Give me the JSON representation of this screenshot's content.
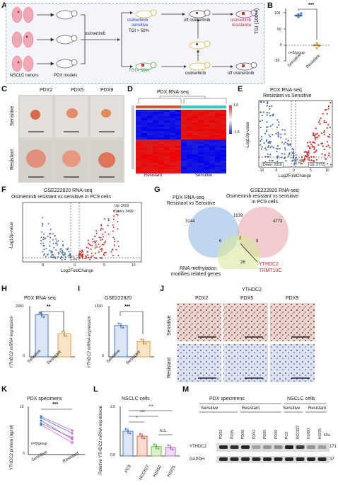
{
  "panel_letters": [
    "A",
    "B",
    "C",
    "D",
    "E",
    "F",
    "G",
    "H",
    "I",
    "J",
    "K",
    "L",
    "M"
  ],
  "panel_a": {
    "tumor_label": "NSCLC tumors",
    "pdx_label": "PDX models",
    "drug": "osimertinib",
    "sensitive_line1": "osimertinib",
    "sensitive_line2": "sensitive",
    "tgi_high": "TGI > 50%",
    "tgi_low": "TGI < 50%",
    "off_drug": "off osimertinib",
    "resistance_line1": "osimertinib",
    "resistance_line2": "resistance",
    "drug_again": "osimertinib",
    "off_drug_final": "off osimertinib"
  },
  "panel_b": {
    "ylabel": "TGI (100%)",
    "sig": "***",
    "n_note": "n=5/group",
    "categories": [
      "Sensitive",
      "Resistant"
    ],
    "yticks": [
      "100",
      "50",
      "0",
      "-50"
    ],
    "colors": {
      "sensitive": "#4a7fd4",
      "resistant": "#e8a23a"
    }
  },
  "panel_c": {
    "columns": [
      "PDX2",
      "PDX5",
      "PDX9"
    ],
    "rows": [
      "Sensitive",
      "Resistant"
    ]
  },
  "panel_d": {
    "title": "PDX RNA-seq",
    "groups": [
      "Resistant",
      "Sensitive"
    ],
    "scale": [
      "1.5",
      "1",
      "0.5",
      "0",
      "-0.5",
      "-1",
      "-1.5"
    ]
  },
  "panel_e": {
    "title_line1": "PDX RNA-seq",
    "title_line2": "Resistant vs Sensitive",
    "ylabel": "-Log10p-value",
    "xlabel": "Log2FoldChange",
    "xticks": [
      "-10",
      "-5",
      "0",
      "5",
      "10"
    ],
    "yticks": [
      "0",
      "5",
      "10",
      "15",
      "20"
    ],
    "down": "Down: 2019",
    "up": "Up: 2772"
  },
  "panel_f": {
    "title_line1": "GSE222820 RNA-seq",
    "title_line2": "Osimertinib resistant vs sensitive in PC9 cells",
    "ylabel": "-Log10p-value",
    "xlabel": "Log2FoldChange",
    "xticks": [
      "-5",
      "0",
      "5",
      "10"
    ],
    "yticks": [
      "0",
      "100",
      "200",
      "300"
    ],
    "up": "Up: 2623",
    "down": "Down: 3499"
  },
  "panel_g": {
    "set1_line1": "PDX RNA-seq",
    "set1_line2": "Resistant vs Sensitive",
    "set2_line1": "GSE222820 RNA-seq",
    "set2_line2": "Osimertinib resistant vs sensitive",
    "set2_line3": "in PC9 cells",
    "set3_line1": "RNA methylation",
    "set3_line2": "modifies related genes",
    "n_a": "3144",
    "n_ab": "1639",
    "n_b": "4773",
    "n_ac": "6",
    "n_abc": "2",
    "n_bc": "8",
    "n_c": "26",
    "gene1": "YTHDC2",
    "gene2": "TRMT10C"
  },
  "panel_h": {
    "title": "PDX RNA-seq",
    "ylabel": "YTHDC2 mRNA expression",
    "yticks": [
      "0",
      "500",
      "1000",
      "1500",
      "2000"
    ],
    "categories": [
      "Sensitive",
      "Resistant"
    ],
    "values": [
      1650,
      900
    ],
    "sig": "**"
  },
  "panel_i": {
    "title": "GSE222820",
    "ylabel": "YTHDC2 mRNA expression",
    "yticks": [
      "0",
      "500",
      "1000",
      "1500"
    ],
    "categories": [
      "Sensitive",
      "Resistant"
    ],
    "values": [
      920,
      450
    ],
    "sig": "***"
  },
  "panel_j": {
    "title": "YTHDC2",
    "columns": [
      "PDX2",
      "PDX5",
      "PDX9"
    ],
    "rows": [
      "Sensitive",
      "Resistant"
    ]
  },
  "panel_k": {
    "title": "PDX specimens",
    "ylabel": "YTHDC2 protein (ng/ml)",
    "yticks": [
      "0",
      "2",
      "4",
      "6",
      "8",
      "10"
    ],
    "categories": [
      "Sensitive",
      "Resistant"
    ],
    "sig": "***",
    "n_note": "n=5/group"
  },
  "panel_l": {
    "title": "NSCLC cells",
    "ylabel": "Relative YTHDC2 mRNA expression",
    "yticks": [
      "0.0",
      "0.5",
      "1.0",
      "1.5",
      "2.0"
    ],
    "categories": [
      "PC9",
      "HCC827",
      "H1650",
      "H1975"
    ],
    "values": [
      1.0,
      0.8,
      0.38,
      0.35
    ],
    "sig1": "*",
    "sig2": "***",
    "sig3": "***",
    "ns": "N.S."
  },
  "panel_m": {
    "group1": "PDX specimens",
    "group2": "NSCLC cells",
    "sub_sens": "Sensitive",
    "sub_res": "Resistant",
    "sub_sens2": "Sensitive",
    "sub_res2": "Resistant",
    "lanes": [
      "PDX2",
      "PDX5",
      "PDX9",
      "PDX2",
      "PDX5",
      "PDX9",
      "PC9",
      "HCC827",
      "H1650",
      "H1975"
    ],
    "kda": "kDa",
    "rows": [
      "YTHDC2",
      "GAPDH"
    ],
    "sizes": [
      "171",
      "37"
    ]
  },
  "chart_data": [
    {
      "type": "bar",
      "panel": "H",
      "categories": [
        "Sensitive",
        "Resistant"
      ],
      "values": [
        1650,
        900
      ],
      "ylabel": "YTHDC2 mRNA expression",
      "ylim": [
        0,
        2000
      ]
    },
    {
      "type": "bar",
      "panel": "I",
      "categories": [
        "Sensitive",
        "Resistant"
      ],
      "values": [
        920,
        450
      ],
      "ylabel": "YTHDC2 mRNA expression",
      "ylim": [
        0,
        1500
      ]
    },
    {
      "type": "bar",
      "panel": "L",
      "categories": [
        "PC9",
        "HCC827",
        "H1650",
        "H1975"
      ],
      "values": [
        1.0,
        0.8,
        0.38,
        0.35
      ],
      "ylabel": "Relative YTHDC2 mRNA expression",
      "ylim": [
        0,
        2.0
      ]
    }
  ]
}
